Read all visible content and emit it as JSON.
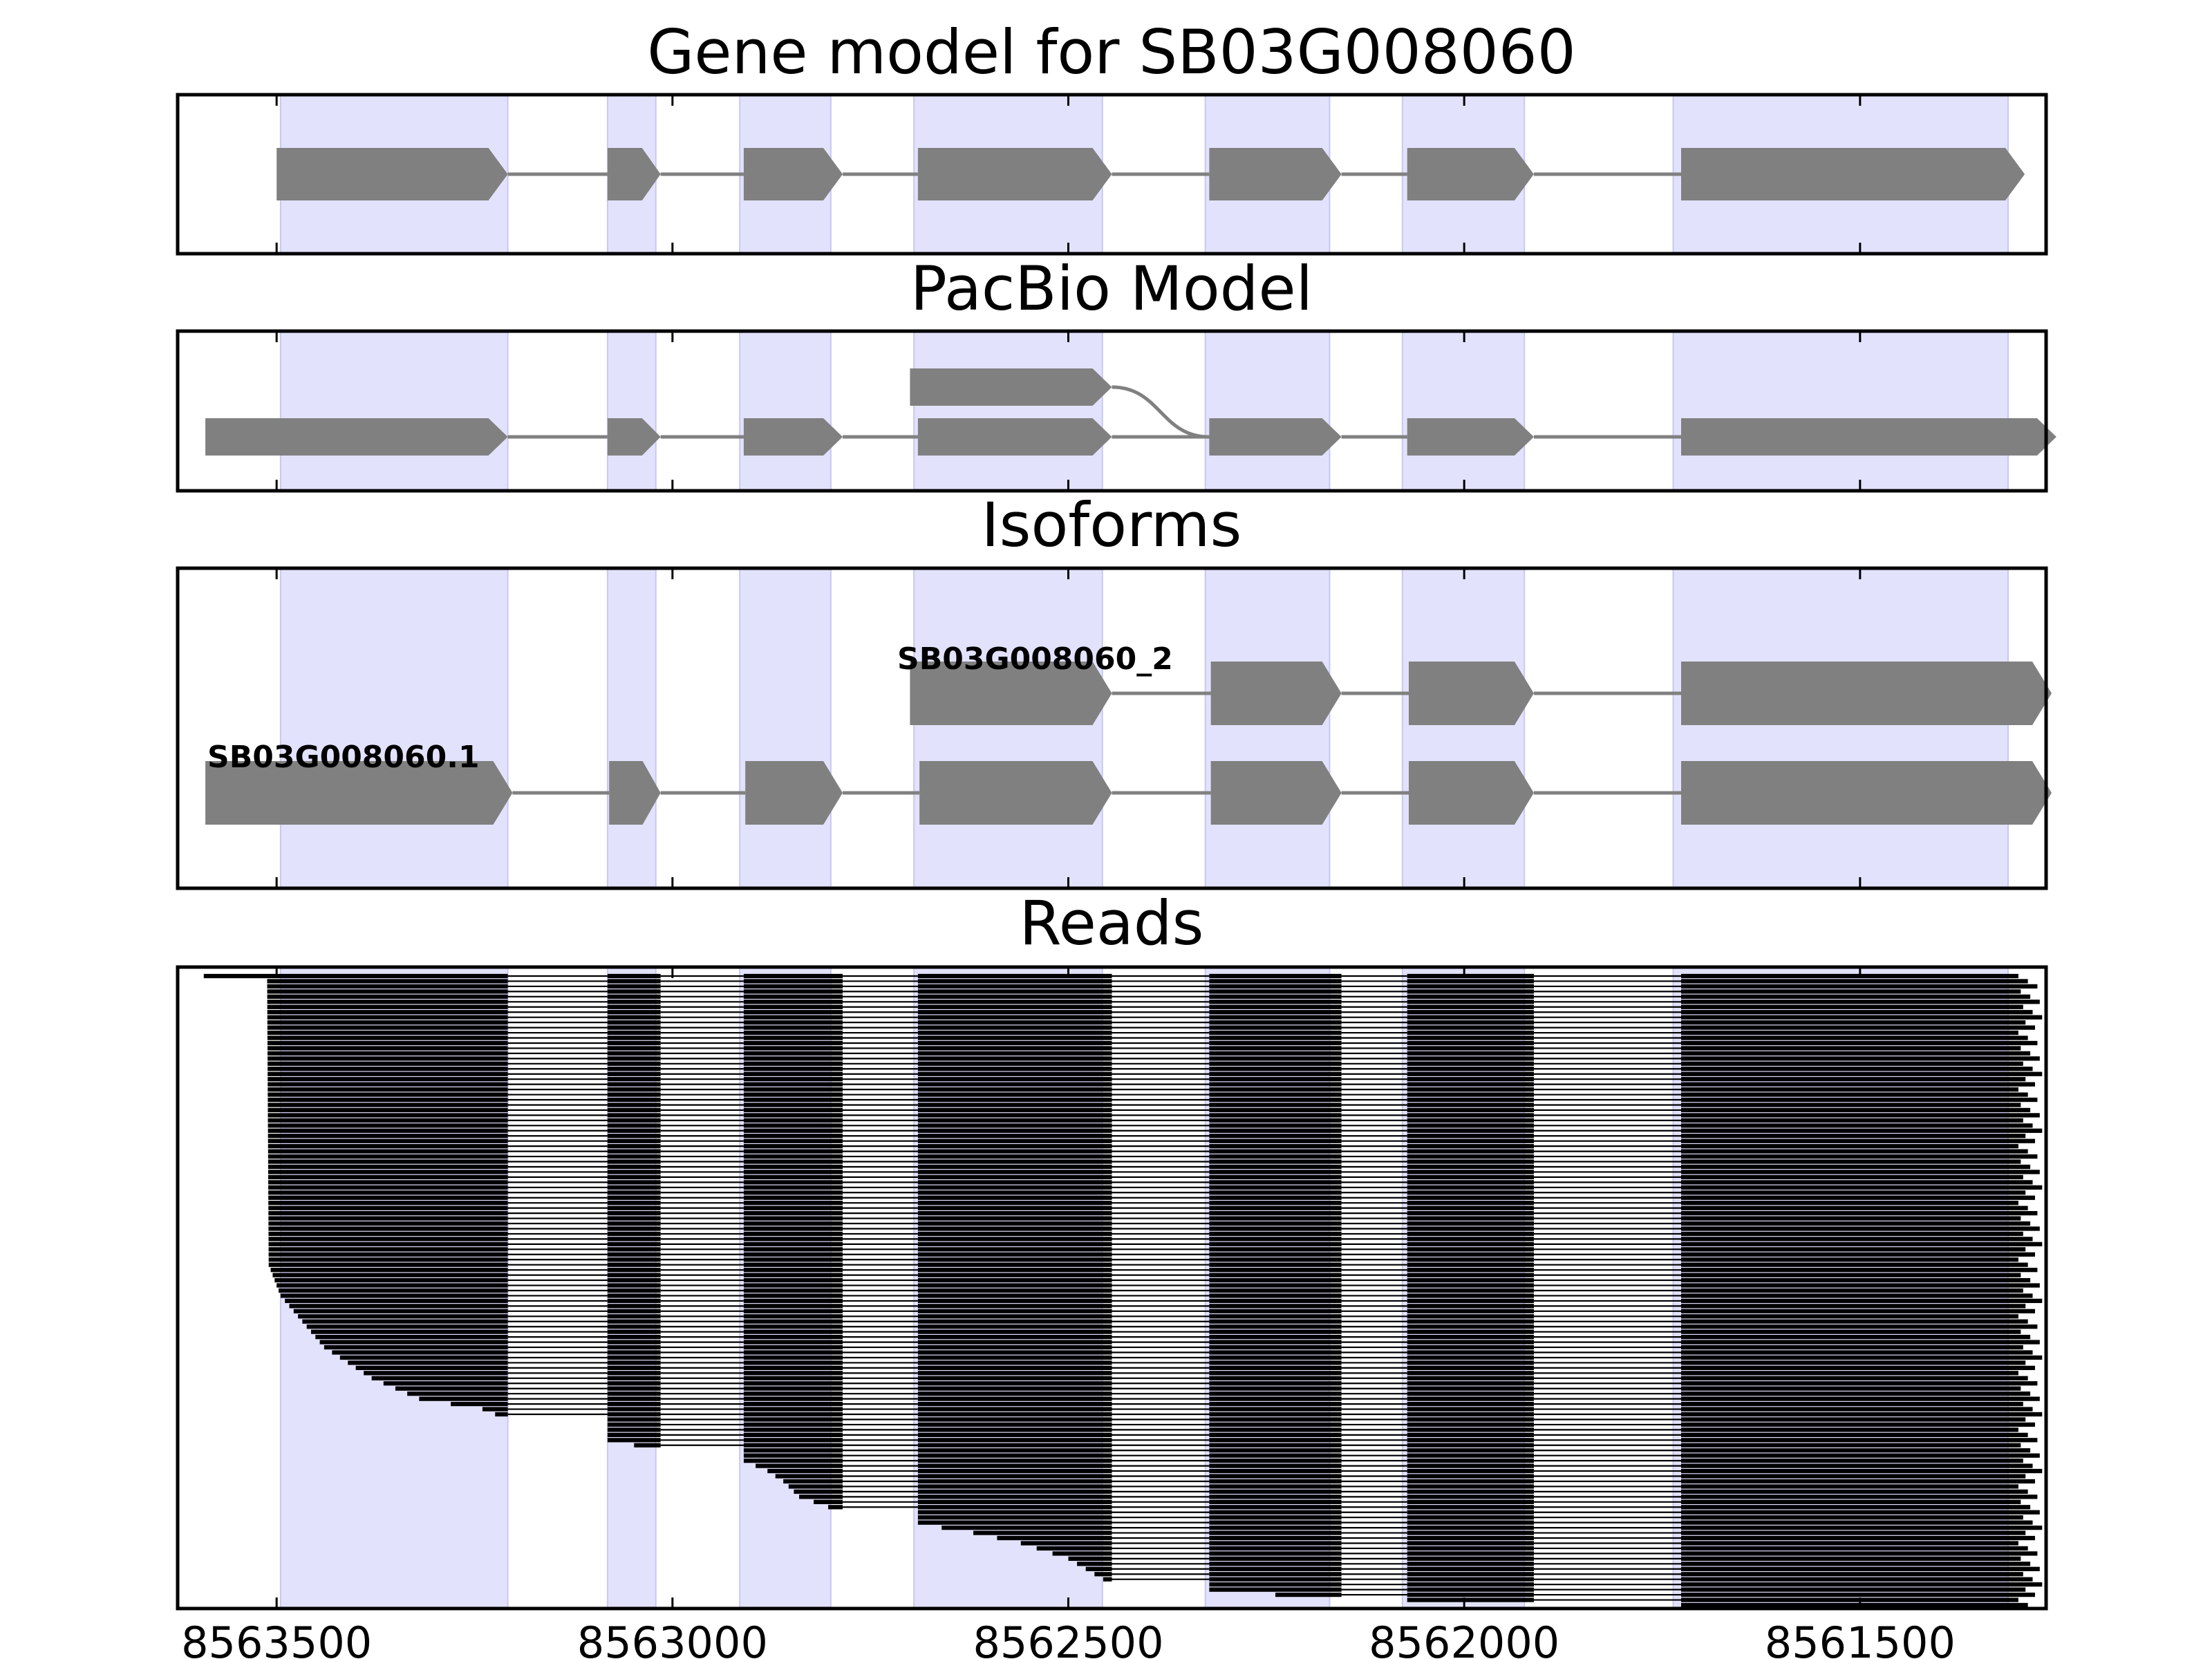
{
  "chart_data": {
    "type": "gene-model",
    "panels": [
      {
        "id": "gene",
        "title": "Gene model for SB03G008060"
      },
      {
        "id": "pacbio",
        "title": "PacBio Model"
      },
      {
        "id": "isoforms",
        "title": "Isoforms"
      },
      {
        "id": "reads",
        "title": "Reads"
      }
    ],
    "xlim": [
      8563625,
      8561265
    ],
    "x_ticks": [
      8563500,
      8563000,
      8562500,
      8562000,
      8561500
    ],
    "x_tick_labels": [
      "8563500",
      "8563000",
      "8562500",
      "8562000",
      "8561500"
    ],
    "exon_shading": [
      [
        8563495,
        8563208
      ],
      [
        8563082,
        8563021
      ],
      [
        8562915,
        8562800
      ],
      [
        8562695,
        8562457
      ],
      [
        8562327,
        8562170
      ],
      [
        8562078,
        8561924
      ],
      [
        8561736,
        8561313
      ]
    ],
    "gene_model": {
      "name": "SB03G008060",
      "exons": [
        [
          8563500,
          8563208
        ],
        [
          8563082,
          8563015
        ],
        [
          8562910,
          8562785
        ],
        [
          8562690,
          8562445
        ],
        [
          8562322,
          8562155
        ],
        [
          8562072,
          8561912
        ],
        [
          8561726,
          8561292
        ]
      ]
    },
    "pacbio_model": {
      "transcripts": [
        {
          "exons": [
            [
              8563590,
              8563208
            ],
            [
              8563082,
              8563015
            ],
            [
              8562910,
              8562785
            ],
            [
              8562690,
              8562445
            ],
            [
              8562322,
              8562155
            ],
            [
              8562072,
              8561912
            ],
            [
              8561726,
              8561252
            ]
          ]
        },
        {
          "exons": [
            [
              8562700,
              8562445
            ]
          ],
          "links_to": 8562322
        }
      ]
    },
    "isoforms": [
      {
        "name": "SB03G008060_2",
        "exons": [
          [
            8562700,
            8562445
          ],
          [
            8562320,
            8562155
          ],
          [
            8562070,
            8561912
          ],
          [
            8561726,
            8561258
          ]
        ]
      },
      {
        "name": "SB03G008060.1",
        "exons": [
          [
            8563590,
            8563202
          ],
          [
            8563080,
            8563015
          ],
          [
            8562908,
            8562785
          ],
          [
            8562688,
            8562445
          ],
          [
            8562320,
            8562155
          ],
          [
            8562070,
            8561912
          ],
          [
            8561726,
            8561258
          ]
        ]
      }
    ],
    "reads": {
      "count": 123,
      "exons": [
        [
          8563510,
          8563208
        ],
        [
          8563082,
          8563015
        ],
        [
          8562910,
          8562785
        ],
        [
          8562690,
          8562445
        ],
        [
          8562322,
          8562155
        ],
        [
          8562072,
          8561912
        ],
        [
          8561726,
          8561314
        ]
      ],
      "first_read_start": 8563592,
      "start_profile": [
        [
          0,
          8563512
        ],
        [
          56,
          8563510
        ],
        [
          62,
          8563495
        ],
        [
          72,
          8563440
        ],
        [
          78,
          8563380
        ],
        [
          82,
          8563320
        ],
        [
          84,
          8563240
        ],
        [
          86,
          8563208
        ],
        [
          90,
          8563082
        ],
        [
          92,
          8563015
        ],
        [
          94,
          8562910
        ],
        [
          96,
          8562880
        ],
        [
          98,
          8562860
        ],
        [
          101,
          8562840
        ],
        [
          104,
          8562785
        ],
        [
          106,
          8562700
        ],
        [
          108,
          8562620
        ],
        [
          110,
          8562560
        ],
        [
          113,
          8562500
        ],
        [
          118,
          8562445
        ],
        [
          119,
          8562322
        ],
        [
          121,
          8562155
        ],
        [
          122,
          8561912
        ],
        [
          123,
          8561912
        ]
      ],
      "end_range": [
        8561300,
        8561270
      ]
    }
  }
}
